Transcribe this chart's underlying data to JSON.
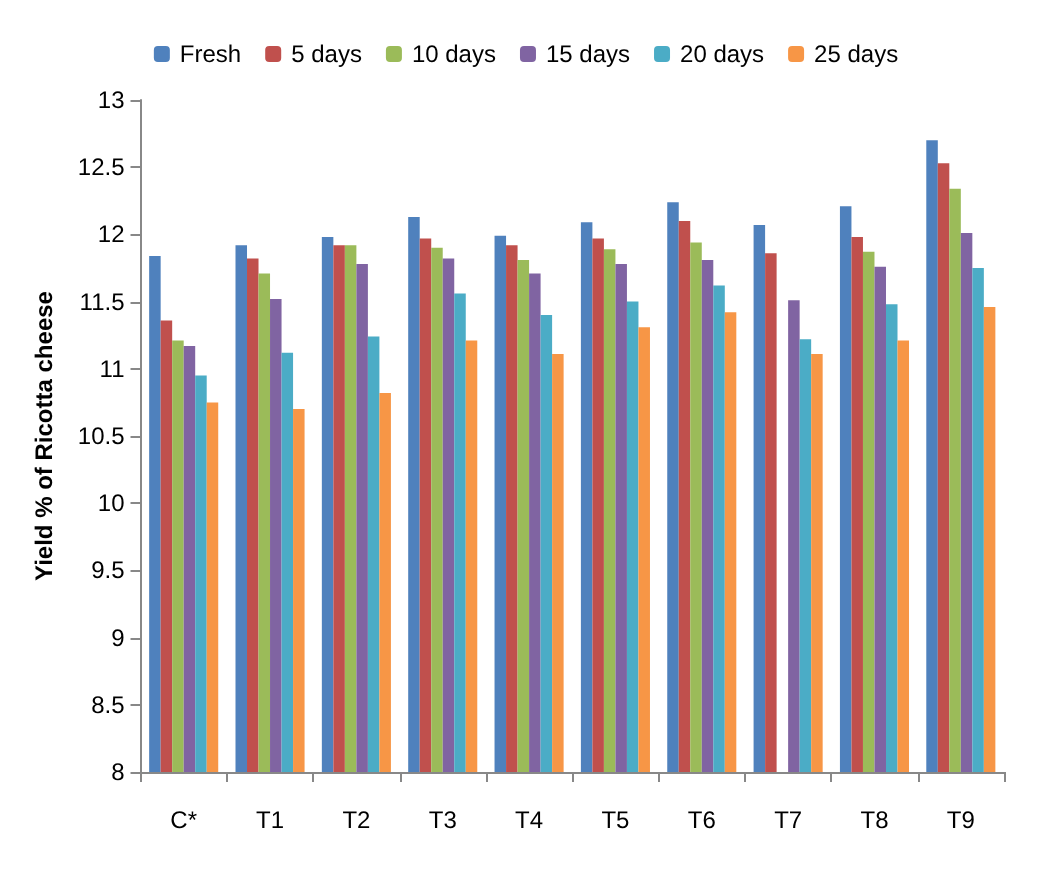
{
  "chart_data": {
    "type": "bar",
    "ylabel": "Yield % of Ricotta cheese",
    "categories": [
      "C*",
      "T1",
      "T2",
      "T3",
      "T4",
      "T5",
      "T6",
      "T7",
      "T8",
      "T9"
    ],
    "series": [
      {
        "name": "Fresh",
        "color": "#4f81bd",
        "values": [
          11.84,
          11.92,
          11.98,
          12.13,
          11.99,
          12.09,
          12.24,
          12.07,
          12.21,
          12.7
        ]
      },
      {
        "name": "5 days",
        "color": "#c0504d",
        "values": [
          11.36,
          11.82,
          11.92,
          11.97,
          11.92,
          11.97,
          12.1,
          11.86,
          11.98,
          12.53
        ]
      },
      {
        "name": "10 days",
        "color": "#9bbb59",
        "values": [
          11.21,
          11.71,
          11.92,
          11.9,
          11.81,
          11.89,
          11.94,
          null,
          11.87,
          12.34
        ]
      },
      {
        "name": "15 days",
        "color": "#8064a2",
        "values": [
          11.17,
          11.52,
          11.78,
          11.82,
          11.71,
          11.78,
          11.81,
          11.51,
          11.76,
          12.01
        ]
      },
      {
        "name": "20 days",
        "color": "#4bacc6",
        "values": [
          10.95,
          11.12,
          11.24,
          11.56,
          11.4,
          11.5,
          11.62,
          11.22,
          11.48,
          11.75
        ]
      },
      {
        "name": "25 days",
        "color": "#f79646",
        "values": [
          10.75,
          10.7,
          10.82,
          11.21,
          11.11,
          11.31,
          11.42,
          11.11,
          11.21,
          11.46
        ]
      }
    ],
    "ylim": [
      8,
      13
    ],
    "yticks": [
      8,
      8.5,
      9,
      9.5,
      10,
      10.5,
      11,
      11.5,
      12,
      12.5,
      13
    ],
    "grid": false,
    "legend": "top"
  }
}
